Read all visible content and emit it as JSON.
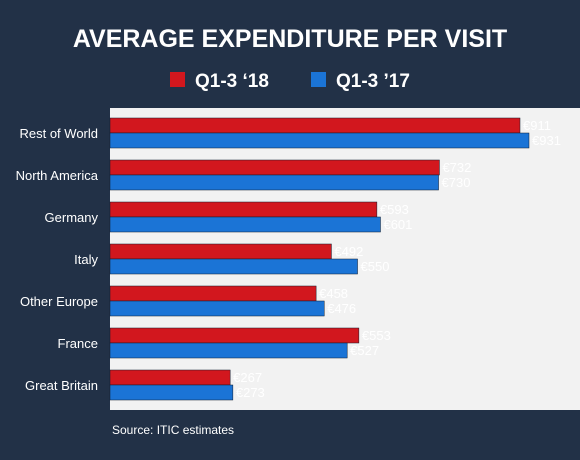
{
  "chart_data": {
    "type": "bar",
    "orientation": "horizontal",
    "title": "AVERAGE EXPENDITURE PER VISIT",
    "categories": [
      "Rest of World",
      "North America",
      "Germany",
      "Italy",
      "Other Europe",
      "France",
      "Great Britain"
    ],
    "series": [
      {
        "name": "Q1-3 ‘18",
        "color": "#d2171e",
        "values": [
          911,
          732,
          593,
          492,
          458,
          553,
          267
        ],
        "labels": [
          "€911",
          "€732",
          "€593",
          "€492",
          "€458",
          "€553",
          "€267"
        ]
      },
      {
        "name": "Q1-3 ’17",
        "color": "#1b74d6",
        "values": [
          931,
          730,
          601,
          550,
          476,
          527,
          273
        ],
        "labels": [
          "€931",
          "€730",
          "€601",
          "€550",
          "€476",
          "€527",
          "€273"
        ]
      }
    ],
    "xlim": [
      0,
      931
    ],
    "grid": false,
    "legend_position": "top-center",
    "source": "Source: ITIC estimates"
  },
  "colors": {
    "background": "#223147",
    "panel": "#f2f2f2",
    "text": "#ffffff"
  }
}
